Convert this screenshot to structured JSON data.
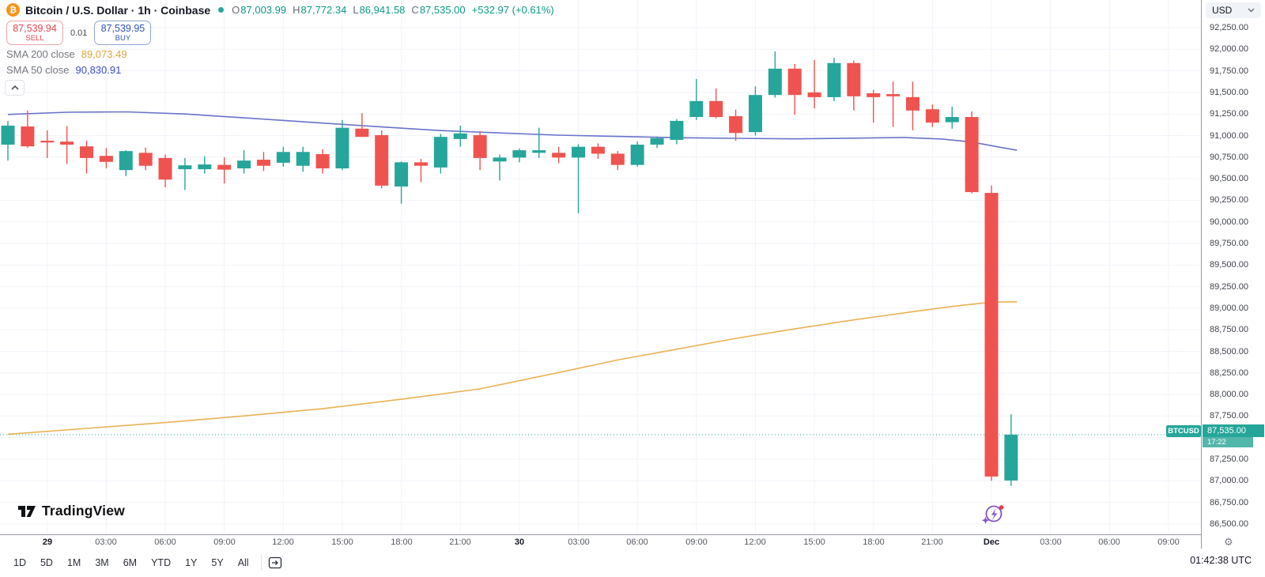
{
  "header": {
    "symbol_button": {
      "title": "Bitcoin / U.S. Dollar · 1h · Coinbase"
    },
    "ohlc": {
      "o": {
        "label": "O",
        "value": "87,003.99"
      },
      "h": {
        "label": "H",
        "value": "87,772.34"
      },
      "l": {
        "label": "L",
        "value": "86,941.58"
      },
      "c": {
        "label": "C",
        "value": "87,535.00"
      },
      "change": "+532.97 (+0.61%)"
    },
    "order_panel": {
      "sell_price": "87,539.94",
      "sell_label": "SELL",
      "spread": "0.01",
      "buy_price": "87,539.95",
      "buy_label": "BUY"
    },
    "indicators": [
      {
        "label": "SMA 200 close",
        "value": "89,073.49"
      },
      {
        "label": "SMA 50 close",
        "value": "90,830.91"
      }
    ]
  },
  "price_axis": {
    "currency": "USD",
    "labels": [
      "92,250.00",
      "92,000.00",
      "91,750.00",
      "91,500.00",
      "91,250.00",
      "91,000.00",
      "90,750.00",
      "90,500.00",
      "90,250.00",
      "90,000.00",
      "89,750.00",
      "89,500.00",
      "89,250.00",
      "89,000.00",
      "88,750.00",
      "88,500.00",
      "88,250.00",
      "88,000.00",
      "87,750.00",
      "87,500.00",
      "87,250.00",
      "87,000.00",
      "86,750.00",
      "86,500.00"
    ],
    "last_price": {
      "symbol_tag": "BTCUSD",
      "price": "87,535.00",
      "countdown": "17:22"
    }
  },
  "time_axis": {
    "labels": [
      {
        "text": "29",
        "bold": true
      },
      {
        "text": "03:00"
      },
      {
        "text": "06:00"
      },
      {
        "text": "09:00"
      },
      {
        "text": "12:00"
      },
      {
        "text": "15:00"
      },
      {
        "text": "18:00"
      },
      {
        "text": "21:00"
      },
      {
        "text": "30",
        "bold": true
      },
      {
        "text": "03:00"
      },
      {
        "text": "06:00"
      },
      {
        "text": "09:00"
      },
      {
        "text": "12:00"
      },
      {
        "text": "15:00"
      },
      {
        "text": "18:00"
      },
      {
        "text": "21:00"
      },
      {
        "text": "Dec",
        "bold": true
      },
      {
        "text": "03:00"
      },
      {
        "text": "06:00"
      },
      {
        "text": "09:00"
      }
    ]
  },
  "toolbar": {
    "ranges": [
      "1D",
      "5D",
      "1M",
      "3M",
      "6M",
      "YTD",
      "1Y",
      "5Y",
      "All"
    ],
    "clock": "01:42:38 UTC"
  },
  "watermark": {
    "brand": "TradingView"
  },
  "chart_data": {
    "type": "candlestick",
    "symbol": "BTCUSD",
    "exchange": "Coinbase",
    "interval": "1h",
    "up_color": "#26a69a",
    "down_color": "#ef5350",
    "grid_color": "#f0f3fa",
    "last_price": 87535.0,
    "last_price_line_color": "#26a69a",
    "y_axis": {
      "max": 92250,
      "min": 86500,
      "step": 250
    },
    "candles_ohlc": [
      [
        90895,
        91170,
        90710,
        91115
      ],
      [
        91105,
        91290,
        90860,
        90875
      ],
      [
        90940,
        91060,
        90740,
        90920
      ],
      [
        90930,
        91110,
        90670,
        90895
      ],
      [
        90875,
        90940,
        90560,
        90740
      ],
      [
        90765,
        90855,
        90620,
        90695
      ],
      [
        90600,
        90830,
        90530,
        90820
      ],
      [
        90800,
        90860,
        90600,
        90650
      ],
      [
        90740,
        90780,
        90400,
        90490
      ],
      [
        90610,
        90740,
        90370,
        90655
      ],
      [
        90610,
        90760,
        90560,
        90665
      ],
      [
        90660,
        90750,
        90445,
        90605
      ],
      [
        90620,
        90830,
        90560,
        90710
      ],
      [
        90720,
        90810,
        90590,
        90650
      ],
      [
        90685,
        90870,
        90640,
        90810
      ],
      [
        90650,
        90870,
        90580,
        90810
      ],
      [
        90785,
        90840,
        90560,
        90620
      ],
      [
        90620,
        91180,
        90600,
        91090
      ],
      [
        91080,
        91260,
        90990,
        90985
      ],
      [
        91005,
        91060,
        90390,
        90420
      ],
      [
        90410,
        90700,
        90210,
        90690
      ],
      [
        90690,
        90730,
        90460,
        90650
      ],
      [
        90630,
        91020,
        90560,
        90985
      ],
      [
        90960,
        91115,
        90870,
        91025
      ],
      [
        91005,
        91050,
        90600,
        90740
      ],
      [
        90700,
        90780,
        90480,
        90745
      ],
      [
        90745,
        90850,
        90690,
        90830
      ],
      [
        90800,
        91090,
        90740,
        90830
      ],
      [
        90800,
        90870,
        90680,
        90745
      ],
      [
        90745,
        90900,
        90100,
        90870
      ],
      [
        90870,
        90910,
        90730,
        90790
      ],
      [
        90790,
        90820,
        90600,
        90660
      ],
      [
        90660,
        90930,
        90640,
        90895
      ],
      [
        90895,
        90990,
        90855,
        90970
      ],
      [
        90950,
        91190,
        90900,
        91170
      ],
      [
        91215,
        91655,
        91180,
        91400
      ],
      [
        91400,
        91545,
        91200,
        91215
      ],
      [
        91225,
        91300,
        90940,
        91030
      ],
      [
        91040,
        91570,
        91000,
        91470
      ],
      [
        91470,
        91975,
        91440,
        91775
      ],
      [
        91775,
        91830,
        91240,
        91470
      ],
      [
        91500,
        91875,
        91315,
        91445
      ],
      [
        91445,
        91900,
        91400,
        91840
      ],
      [
        91840,
        91870,
        91290,
        91455
      ],
      [
        91490,
        91530,
        91150,
        91445
      ],
      [
        91480,
        91625,
        91100,
        91455
      ],
      [
        91445,
        91625,
        91060,
        91290
      ],
      [
        91305,
        91360,
        91100,
        91150
      ],
      [
        91155,
        91335,
        91080,
        91215
      ],
      [
        91215,
        91280,
        90330,
        90345
      ],
      [
        90336,
        90420,
        87000,
        87050
      ],
      [
        87003.99,
        87772.34,
        86941.58,
        87535.0
      ]
    ],
    "sma50": {
      "name": "SMA 50 close",
      "value": 90830.91,
      "color": "#6a74c9",
      "points": [
        [
          0,
          91245
        ],
        [
          3,
          91270
        ],
        [
          6,
          91275
        ],
        [
          9,
          91250
        ],
        [
          12,
          91205
        ],
        [
          16,
          91145
        ],
        [
          19,
          91100
        ],
        [
          22,
          91058
        ],
        [
          25,
          91030
        ],
        [
          28,
          91005
        ],
        [
          31,
          90990
        ],
        [
          34,
          90975
        ],
        [
          37,
          90968
        ],
        [
          40,
          90962
        ],
        [
          43,
          90970
        ],
        [
          45.5,
          90978
        ],
        [
          47.5,
          90960
        ],
        [
          49,
          90925
        ],
        [
          50.3,
          90870
        ],
        [
          51.3,
          90830
        ]
      ]
    },
    "sma200": {
      "name": "SMA 200 close",
      "value": 89073.49,
      "color": "#eab255",
      "points": [
        [
          0,
          87540
        ],
        [
          4,
          87607
        ],
        [
          8,
          87675
        ],
        [
          12,
          87752
        ],
        [
          16,
          87835
        ],
        [
          20,
          87945
        ],
        [
          24,
          88065
        ],
        [
          28,
          88255
        ],
        [
          31,
          88400
        ],
        [
          34,
          88525
        ],
        [
          37,
          88650
        ],
        [
          40,
          88760
        ],
        [
          43,
          88865
        ],
        [
          46,
          88960
        ],
        [
          48,
          89020
        ],
        [
          50,
          89070
        ],
        [
          51.3,
          89073
        ]
      ]
    }
  }
}
